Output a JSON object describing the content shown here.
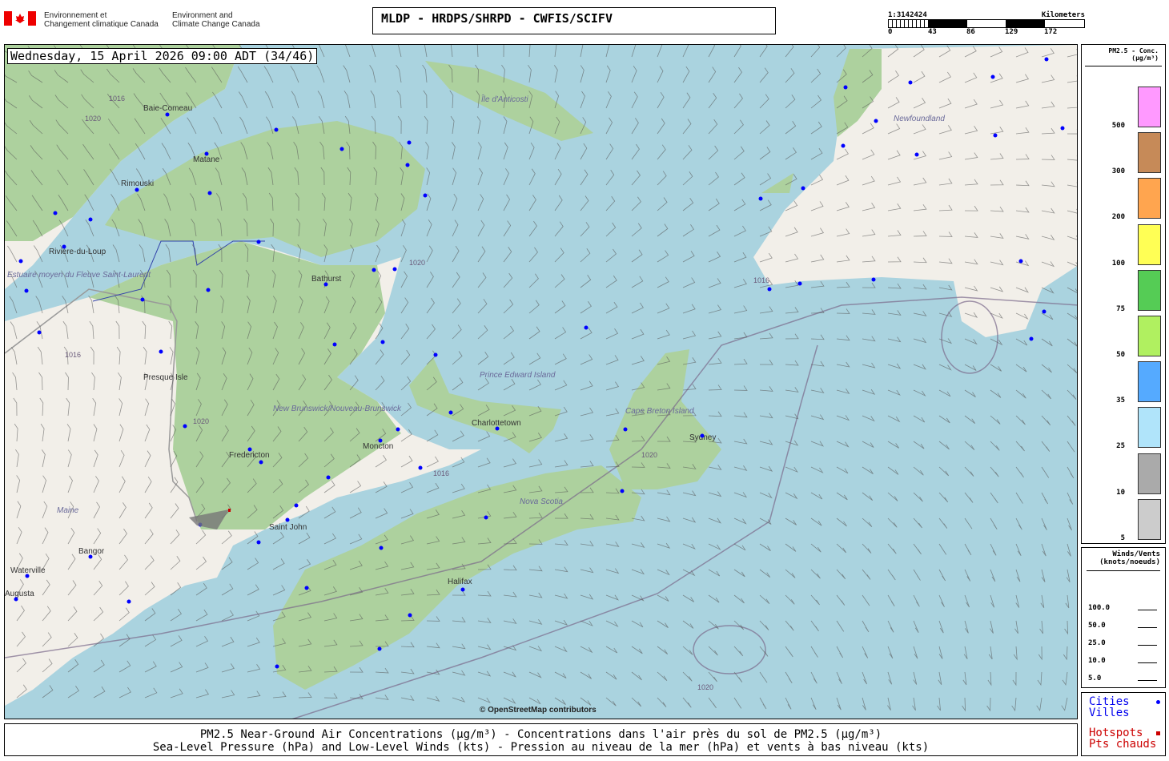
{
  "header": {
    "org_fr": [
      "Environnement et",
      "Changement climatique Canada"
    ],
    "org_en": [
      "Environment and",
      "Climate Change Canada"
    ],
    "title": "MLDP - HRDPS/SHRPD - CWFIS/SCIFV"
  },
  "scale": {
    "ratio": "1:3142424",
    "unit": "Kilometers",
    "ticks": [
      "0",
      "43",
      "86",
      "129",
      "172"
    ]
  },
  "map": {
    "timestamp": "Wednesday, 15 April 2026 09:00 ADT (34/46)",
    "attribution": "© OpenStreetMap contributors",
    "labels": [
      "Île d'Anticosti",
      "Newfoundland",
      "Baie-Comeau",
      "Matane",
      "Rimouski",
      "Rivière-du-Loup",
      "Bathurst",
      "Presque Isle",
      "New Brunswick/Nouveau-Brunswick",
      "Fredericton",
      "Moncton",
      "Saint John",
      "Prince Edward Island",
      "Charlottetown",
      "Cape Breton Island",
      "Sydney",
      "Nova Scotia",
      "Halifax",
      "Maine",
      "Bangor",
      "Waterville",
      "Augusta",
      "Estuaire moyen du Fleuve Saint-Laurent"
    ],
    "isobars": [
      "1020",
      "1016",
      "1020",
      "1016",
      "1020",
      "1016",
      "1020",
      "1016",
      "1020"
    ],
    "colors": {
      "water": "#aad3df",
      "land": "#f2efe9",
      "forest": "#add19e",
      "city_dot": "#0000ff",
      "hotspot": "#cc0000"
    }
  },
  "legend": {
    "title": "PM2.5 - Conc.",
    "unit": "(µg/m³)",
    "levels": [
      {
        "label": "500",
        "color": "#ff99ff"
      },
      {
        "label": "300",
        "color": "#c68a58"
      },
      {
        "label": "200",
        "color": "#ffa54f"
      },
      {
        "label": "100",
        "color": "#ffff55"
      },
      {
        "label": "75",
        "color": "#55cc55"
      },
      {
        "label": "50",
        "color": "#b0f060"
      },
      {
        "label": "35",
        "color": "#55aaff"
      },
      {
        "label": "25",
        "color": "#b0e4fa"
      },
      {
        "label": "10",
        "color": "#aaaaaa"
      },
      {
        "label": "5",
        "color": "#cccccc"
      }
    ]
  },
  "winds": {
    "title": "Winds/Vents",
    "unit": "(knots/noeuds)",
    "speeds": [
      "100.0",
      "50.0",
      "25.0",
      "10.0",
      "5.0"
    ]
  },
  "symbols": {
    "cities_en": "Cities",
    "cities_fr": "Villes",
    "hotspots_en": "Hotspots",
    "hotspots_fr": "Pts chauds"
  },
  "caption": {
    "line1": "PM2.5 Near-Ground Air Concentrations (µg/m³) - Concentrations dans l'air près du sol de PM2.5 (µg/m³)",
    "line2": "Sea-Level Pressure (hPa) and Low-Level Winds (kts) - Pression au niveau de la mer (hPa) et vents à bas niveau (kts)"
  }
}
